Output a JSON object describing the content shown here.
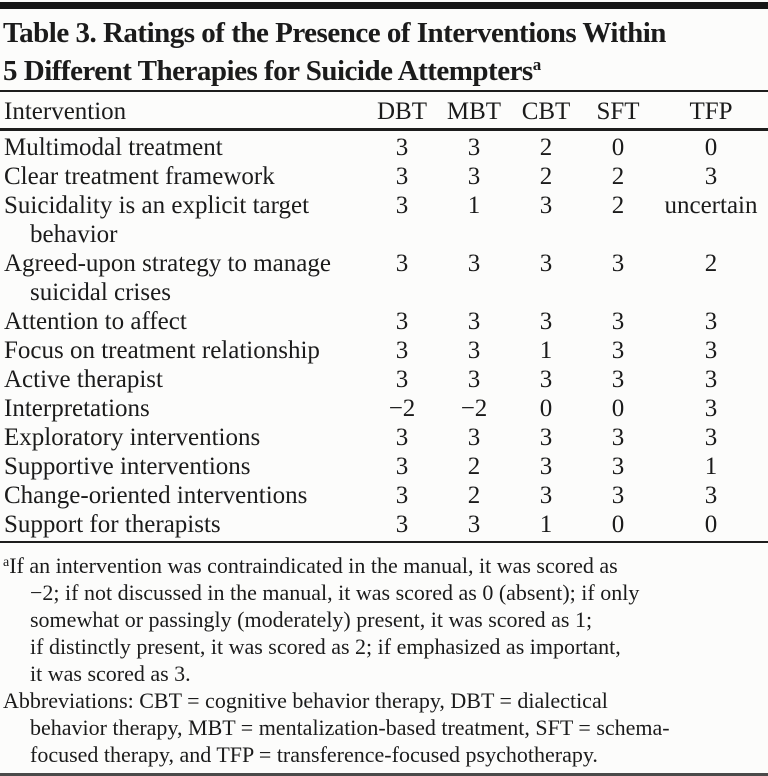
{
  "title": {
    "line1": "Table 3. Ratings of the Presence of Interventions Within",
    "line2": "5 Different Therapies for Suicide Attempters",
    "superscript": "a"
  },
  "columns": [
    "Intervention",
    "DBT",
    "MBT",
    "CBT",
    "SFT",
    "TFP"
  ],
  "rows": [
    {
      "label": "Multimodal treatment",
      "values": [
        "3",
        "3",
        "2",
        "0",
        "0"
      ]
    },
    {
      "label": "Clear treatment framework",
      "values": [
        "3",
        "3",
        "2",
        "2",
        "3"
      ]
    },
    {
      "label": "Suicidality is an explicit target",
      "label2": "behavior",
      "values": [
        "3",
        "1",
        "3",
        "2",
        "uncertain"
      ]
    },
    {
      "label": "Agreed-upon strategy to manage",
      "label2": "suicidal crises",
      "values": [
        "3",
        "3",
        "3",
        "3",
        "2"
      ]
    },
    {
      "label": "Attention to affect",
      "values": [
        "3",
        "3",
        "3",
        "3",
        "3"
      ]
    },
    {
      "label": "Focus on treatment relationship",
      "values": [
        "3",
        "3",
        "1",
        "3",
        "3"
      ]
    },
    {
      "label": "Active therapist",
      "values": [
        "3",
        "3",
        "3",
        "3",
        "3"
      ]
    },
    {
      "label": "Interpretations",
      "values": [
        "−2",
        "−2",
        "0",
        "0",
        "3"
      ]
    },
    {
      "label": "Exploratory interventions",
      "values": [
        "3",
        "3",
        "3",
        "3",
        "3"
      ]
    },
    {
      "label": "Supportive interventions",
      "values": [
        "3",
        "2",
        "3",
        "3",
        "1"
      ]
    },
    {
      "label": "Change-oriented interventions",
      "values": [
        "3",
        "2",
        "3",
        "3",
        "3"
      ]
    },
    {
      "label": "Support for therapists",
      "values": [
        "3",
        "3",
        "1",
        "0",
        "0"
      ]
    }
  ],
  "footnote_a": {
    "marker": "a",
    "lines": [
      "If an intervention was contraindicated in the manual, it was scored as",
      "−2; if not discussed in the manual, it was scored as 0 (absent); if only",
      "somewhat or passingly (moderately) present, it was scored as 1;",
      "if distinctly present, it was scored as 2; if emphasized as important,",
      "it was scored as 3."
    ]
  },
  "abbreviations": {
    "lines": [
      "Abbreviations: CBT = cognitive behavior therapy, DBT = dialectical",
      "behavior therapy, MBT = mentalization-based treatment, SFT = schema-",
      "focused therapy, and TFP = transference-focused psychotherapy."
    ]
  },
  "colors": {
    "background": "#fcfcfb",
    "text": "#1b1b1b",
    "rule": "#1d1d1d",
    "bottom_rule": "#4a4a4a"
  }
}
